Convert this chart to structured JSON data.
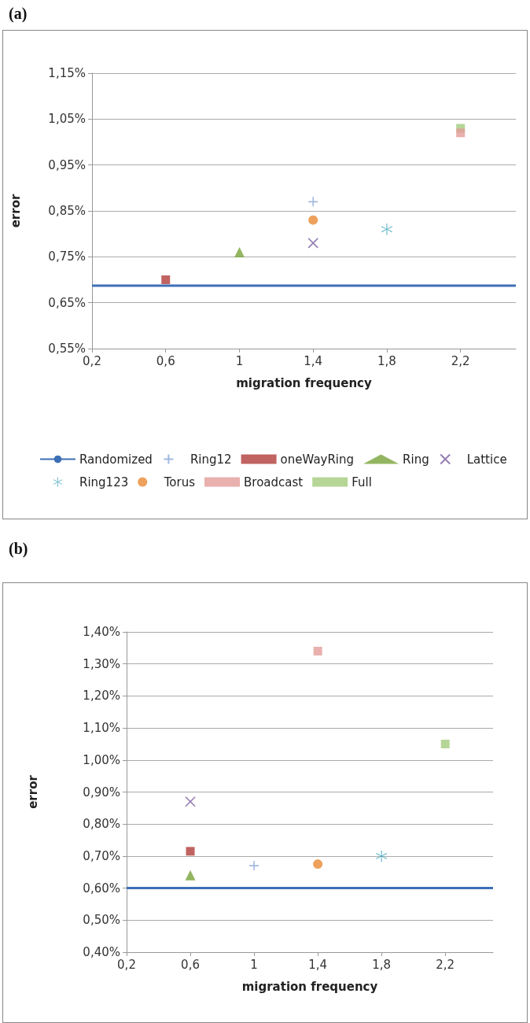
{
  "chart_data": [
    {
      "type": "scatter",
      "title": "(a)",
      "xlabel": "migration frequency",
      "ylabel": "error",
      "xlim": [
        0.2,
        2.5
      ],
      "xticks": [
        {
          "value": 0.2,
          "label": "0,2"
        },
        {
          "value": 0.6,
          "label": "0,6"
        },
        {
          "value": 1,
          "label": "1"
        },
        {
          "value": 1.4,
          "label": "1,4"
        },
        {
          "value": 1.8,
          "label": "1,8"
        },
        {
          "value": 2.2,
          "label": "2,2"
        }
      ],
      "ylim": [
        0.55,
        1.15
      ],
      "yticks": [
        {
          "value": 0.55,
          "label": "0,55%"
        },
        {
          "value": 0.65,
          "label": "0,65%"
        },
        {
          "value": 0.75,
          "label": "0,75%"
        },
        {
          "value": 0.85,
          "label": "0,85%"
        },
        {
          "value": 0.95,
          "label": "0,95%"
        },
        {
          "value": 1.05,
          "label": "1,05%"
        },
        {
          "value": 1.15,
          "label": "1,15%"
        }
      ],
      "grid": "y",
      "legend": "bottom",
      "series": [
        {
          "name": "Randomized",
          "type": "line",
          "color": "#3d6fb6",
          "marker": "none",
          "line_style": "solid",
          "x": [
            0.2,
            2.5
          ],
          "values": [
            0.687,
            0.687
          ]
        },
        {
          "name": "Ring12",
          "color": "#8aa8d8",
          "marker": "plus",
          "x": [
            1.4
          ],
          "values": [
            0.87
          ]
        },
        {
          "name": "oneWayRing",
          "color": "#b03c3a",
          "marker": "square",
          "x": [
            0.6
          ],
          "values": [
            0.7
          ]
        },
        {
          "name": "Ring",
          "color": "#78a33a",
          "marker": "triangle",
          "x": [
            1
          ],
          "values": [
            0.76
          ]
        },
        {
          "name": "Lattice",
          "color": "#7b5ea0",
          "marker": "cross",
          "x": [
            1.4
          ],
          "values": [
            0.78
          ]
        },
        {
          "name": "Ring123",
          "color": "#2f9fb8",
          "marker": "star",
          "x": [
            1.8
          ],
          "values": [
            0.81
          ]
        },
        {
          "name": "Torus",
          "color": "#e98a33",
          "marker": "circle",
          "x": [
            1.4
          ],
          "values": [
            0.83
          ]
        },
        {
          "name": "Broadcast",
          "color": "#e39c98",
          "marker": "square",
          "x": [
            2.2
          ],
          "values": [
            1.02
          ]
        },
        {
          "name": "Full",
          "color": "#a4cc7e",
          "marker": "square",
          "x": [
            2.2
          ],
          "values": [
            1.03
          ]
        }
      ]
    },
    {
      "type": "scatter",
      "title": "(b)",
      "xlabel": "migration frequency",
      "ylabel": "error",
      "xlim": [
        0.2,
        2.5
      ],
      "xticks": [
        {
          "value": 0.2,
          "label": "0,2"
        },
        {
          "value": 0.6,
          "label": "0,6"
        },
        {
          "value": 1,
          "label": "1"
        },
        {
          "value": 1.4,
          "label": "1,4"
        },
        {
          "value": 1.8,
          "label": "1,8"
        },
        {
          "value": 2.2,
          "label": "2,2"
        }
      ],
      "ylim": [
        0.4,
        1.4
      ],
      "yticks": [
        {
          "value": 0.4,
          "label": "0,40%"
        },
        {
          "value": 0.5,
          "label": "0,50%"
        },
        {
          "value": 0.6,
          "label": "0,60%"
        },
        {
          "value": 0.7,
          "label": "0,70%"
        },
        {
          "value": 0.8,
          "label": "0,80%"
        },
        {
          "value": 0.9,
          "label": "0,90%"
        },
        {
          "value": 1.0,
          "label": "1,00%"
        },
        {
          "value": 1.1,
          "label": "1,10%"
        },
        {
          "value": 1.2,
          "label": "1,20%"
        },
        {
          "value": 1.3,
          "label": "1,30%"
        },
        {
          "value": 1.4,
          "label": "1,40%"
        }
      ],
      "grid": "y",
      "series": [
        {
          "type": "line",
          "color": "#3d6fb6",
          "marker": "none",
          "line_style": "solid",
          "x": [
            0.2,
            2.5
          ],
          "values": [
            0.6,
            0.6
          ]
        },
        {
          "color": "#8aa8d8",
          "marker": "plus",
          "x": [
            1
          ],
          "values": [
            0.67
          ]
        },
        {
          "color": "#b03c3a",
          "marker": "square",
          "x": [
            0.6
          ],
          "values": [
            0.715
          ]
        },
        {
          "color": "#78a33a",
          "marker": "triangle",
          "x": [
            0.6
          ],
          "values": [
            0.64
          ]
        },
        {
          "color": "#7b5ea0",
          "marker": "cross",
          "x": [
            0.6
          ],
          "values": [
            0.87
          ]
        },
        {
          "color": "#2f9fb8",
          "marker": "star",
          "x": [
            1.8
          ],
          "values": [
            0.7
          ]
        },
        {
          "color": "#e98a33",
          "marker": "circle",
          "x": [
            1.4
          ],
          "values": [
            0.675
          ]
        },
        {
          "color": "#e39c98",
          "marker": "square",
          "x": [
            1.4
          ],
          "values": [
            1.34
          ]
        },
        {
          "color": "#a4cc7e",
          "marker": "square",
          "x": [
            2.2
          ],
          "values": [
            1.05
          ]
        }
      ]
    }
  ]
}
